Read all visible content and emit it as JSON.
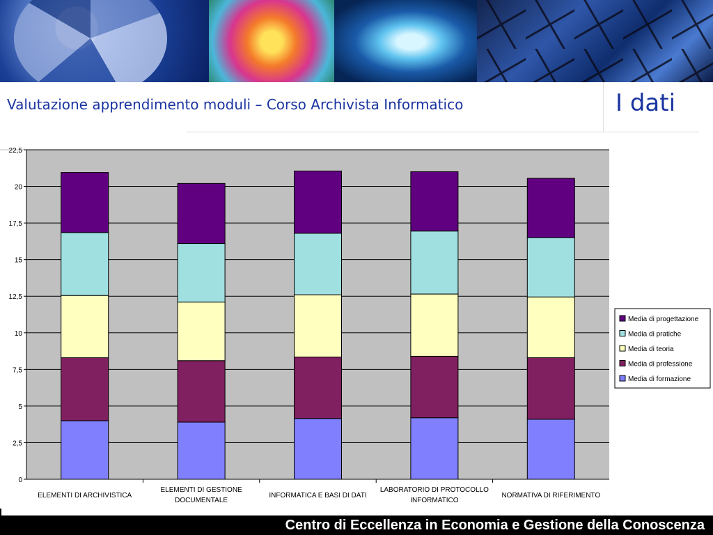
{
  "header": {
    "title": "Valutazione apprendimento moduli – Corso Archivista Informatico",
    "corner_title": "I dati"
  },
  "footer": {
    "text": "Centro di Eccellenza in Economia e Gestione della Conoscenza"
  },
  "colors": {
    "title": "#1a34a0",
    "plot_bg": "#c0c0c0",
    "gridline": "#000000"
  },
  "chart_data": {
    "type": "bar",
    "stacked": true,
    "categories": [
      [
        "ELEMENTI DI ARCHIVISTICA"
      ],
      [
        "ELEMENTI DI GESTIONE",
        "DOCUMENTALE"
      ],
      [
        "INFORMATICA E BASI DI DATI"
      ],
      [
        "LABORATORIO DI PROTOCOLLO",
        "INFORMATICO"
      ],
      [
        "NORMATIVA DI RIFERIMENTO"
      ]
    ],
    "series": [
      {
        "name": "Media di formazione",
        "color": "#8080ff",
        "values": [
          4.0,
          3.9,
          4.15,
          4.2,
          4.1
        ]
      },
      {
        "name": "Media di professione",
        "color": "#802060",
        "values": [
          4.3,
          4.2,
          4.2,
          4.2,
          4.2
        ]
      },
      {
        "name": "Media di teoria",
        "color": "#ffffc0",
        "values": [
          4.25,
          4.0,
          4.25,
          4.25,
          4.15
        ]
      },
      {
        "name": "Media di pratiche",
        "color": "#a0e0e0",
        "values": [
          4.3,
          4.0,
          4.2,
          4.3,
          4.05
        ]
      },
      {
        "name": "Media di progettazione",
        "color": "#600080",
        "values": [
          4.1,
          4.1,
          4.25,
          4.05,
          4.05
        ]
      }
    ],
    "ylim": [
      0,
      22.5
    ],
    "yticks": [
      "0",
      "2,5",
      "5",
      "7,5",
      "10",
      "12,5",
      "15",
      "17,5",
      "20",
      "22,5"
    ],
    "grid": true,
    "legend_position": "right",
    "legend_order": [
      "Media di progettazione",
      "Media di pratiche",
      "Media di teoria",
      "Media di professione",
      "Media di formazione"
    ]
  }
}
